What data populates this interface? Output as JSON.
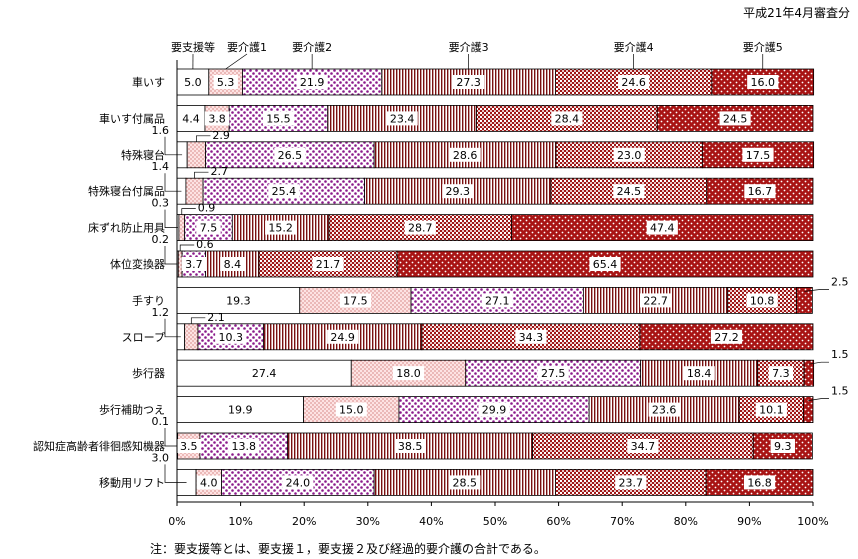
{
  "subtitle": "平成21年4月審査分",
  "note": "注：要支援等とは、要支援１，要支援２及び経過的要介護の合計である。",
  "colors": {
    "seg0": "#ffffff",
    "seg1": "#f2b8b8",
    "seg2": "#9a2a9a",
    "seg3": "#8b1a1a",
    "seg4": "#a01818",
    "seg5": "#b01515",
    "border": "#000000",
    "axis": "#000000"
  },
  "chart_data": {
    "type": "bar",
    "orientation": "horizontal",
    "stacked": "percent",
    "series_names": [
      "要支援等",
      "要介護1",
      "要介護2",
      "要介護3",
      "要介護4",
      "要介護5"
    ],
    "categories": [
      "車いす",
      "車いす付属品",
      "特殊寝台",
      "特殊寝台付属品",
      "床ずれ防止用具",
      "体位変換器",
      "手すり",
      "スロープ",
      "歩行器",
      "歩行補助つえ",
      "認知症高齢者徘徊感知機器",
      "移動用リフト"
    ],
    "values": [
      [
        5.0,
        5.3,
        21.9,
        27.3,
        24.6,
        16.0
      ],
      [
        4.4,
        3.8,
        15.5,
        23.4,
        28.4,
        24.5
      ],
      [
        1.6,
        2.9,
        26.5,
        28.6,
        23.0,
        17.5
      ],
      [
        1.4,
        2.7,
        25.4,
        29.3,
        24.5,
        16.7
      ],
      [
        0.3,
        0.9,
        7.5,
        15.2,
        28.7,
        47.4
      ],
      [
        0.2,
        0.6,
        3.7,
        8.4,
        21.7,
        65.4
      ],
      [
        19.3,
        17.5,
        27.1,
        22.7,
        10.8,
        2.5
      ],
      [
        1.2,
        2.1,
        10.3,
        24.9,
        34.3,
        27.2
      ],
      [
        27.4,
        18.0,
        27.5,
        18.4,
        7.3,
        1.5
      ],
      [
        19.9,
        15.0,
        29.9,
        23.6,
        10.1,
        1.5
      ],
      [
        0.1,
        3.5,
        13.8,
        38.5,
        34.7,
        9.3
      ],
      [
        3.0,
        4.0,
        24.0,
        28.5,
        23.7,
        16.8
      ]
    ],
    "x_ticks": [
      "0%",
      "10%",
      "20%",
      "30%",
      "40%",
      "50%",
      "60%",
      "70%",
      "80%",
      "90%",
      "100%"
    ],
    "xlim": [
      0,
      100
    ],
    "legend": "top, labels above first bar"
  }
}
